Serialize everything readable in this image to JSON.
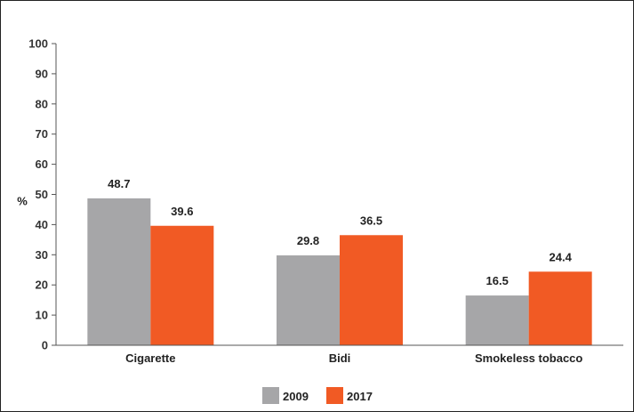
{
  "chart_data": {
    "type": "bar",
    "categories": [
      "Cigarette",
      "Bidi",
      "Smokeless tobacco"
    ],
    "series": [
      {
        "name": "2009",
        "values": [
          48.7,
          29.8,
          16.5
        ],
        "color": "#a6a6a8"
      },
      {
        "name": "2017",
        "values": [
          39.6,
          36.5,
          24.4
        ],
        "color": "#f15a24"
      }
    ],
    "ylabel": "%",
    "ylim": [
      0,
      100
    ],
    "yticks": [
      0,
      10,
      20,
      30,
      40,
      50,
      60,
      70,
      80,
      90,
      100
    ],
    "grid": false,
    "legend_position": "bottom-center"
  }
}
